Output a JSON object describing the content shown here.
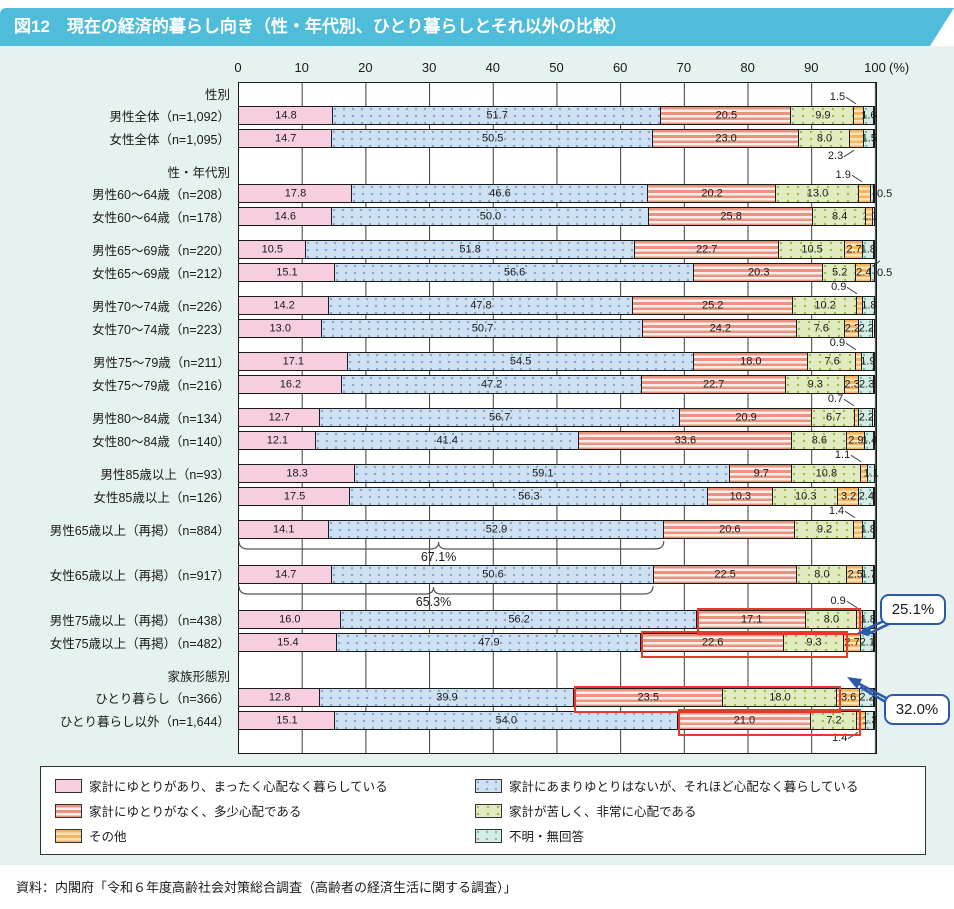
{
  "title": "図12　現在の経済的暮らし向き（性・年代別、ひとり暮らしとそれ以外の比較）",
  "source": "資料：内閣府「令和６年度高齢社会対策総合調査（高齢者の経済生活に関する調査）」",
  "axis": {
    "ticks": [
      "0",
      "10",
      "20",
      "30",
      "40",
      "50",
      "60",
      "70",
      "80",
      "90",
      "100"
    ],
    "unit": "(%)",
    "min": 0,
    "max": 100
  },
  "colors": {
    "title_bg": "#4FBCD9",
    "panel_bg": "#E6F2F0",
    "pink": "#F6CEDF",
    "blue_dotted": "#CEE0F2",
    "salmon_stripe": "#EA9480",
    "green_dotted": "#E2EBBF",
    "orange_stripe": "#F6B45F",
    "teal_dotted": "#D5ECE6",
    "highlight_box": "#E8382D",
    "bubble_border": "#2B5BA8"
  },
  "legend": {
    "columns": [
      [
        {
          "key": "yutori",
          "label": "家計にゆとりがあり、まったく心配なく暮らしている"
        },
        {
          "key": "naku",
          "label": "家計にゆとりがなく、多少心配である"
        },
        {
          "key": "sonota",
          "label": "その他"
        }
      ],
      [
        {
          "key": "amari",
          "label": "家計にあまりゆとりはないが、それほど心配なく暮らしている"
        },
        {
          "key": "kurushii",
          "label": "家計が苦しく、非常に心配である"
        },
        {
          "key": "fumei",
          "label": "不明・無回答"
        }
      ]
    ]
  },
  "chart_data": {
    "type": "bar",
    "stacked": true,
    "orientation": "horizontal",
    "unit": "%",
    "xlim": [
      0,
      100
    ],
    "grid": true,
    "series_names": [
      "家計にゆとりがあり、まったく心配なく暮らしている",
      "家計にあまりゆとりはないが、それほど心配なく暮らしている",
      "家計にゆとりがなく、多少心配である",
      "家計が苦しく、非常に心配である",
      "その他",
      "不明・無回答"
    ],
    "series_keys_css": [
      "yutori",
      "amari",
      "naku",
      "kurushii",
      "sonota",
      "fumei"
    ],
    "blocks": [
      {
        "header": "性別",
        "rows": [
          {
            "label": "男性全体（n=1,092）",
            "values": [
              14.8,
              51.7,
              20.5,
              9.9,
              1.5,
              1.6
            ],
            "labels": [
              "14.8",
              "51.7",
              "20.5",
              "9.9",
              null,
              "1.6"
            ],
            "callouts": [
              {
                "seg": 4,
                "dir": "up",
                "text": "1.5"
              }
            ]
          },
          {
            "label": "女性全体（n=1,095）",
            "values": [
              14.7,
              50.5,
              23.0,
              8.0,
              2.3,
              1.5
            ],
            "labels": [
              "14.7",
              "50.5",
              "23.0",
              "8.0",
              null,
              "1.5"
            ],
            "callouts": [
              {
                "seg": 4,
                "dir": "down",
                "text": "2.3"
              }
            ]
          }
        ]
      },
      {
        "header": "性・年代別",
        "rows": [
          {
            "label": "男性60～64歳（n=208）",
            "values": [
              17.8,
              46.6,
              20.2,
              13.0,
              1.9,
              0.5
            ],
            "labels": [
              "17.8",
              "46.6",
              "20.2",
              "13.0",
              null,
              null
            ],
            "callouts": [
              {
                "seg": 4,
                "dir": "up",
                "text": "1.9"
              },
              {
                "seg": 5,
                "dir": "right",
                "text": "0.5",
                "conn": false
              }
            ]
          },
          {
            "label": "女性60～64歳（n=178）",
            "values": [
              14.6,
              50.0,
              25.8,
              8.4,
              1.1,
              0
            ],
            "labels": [
              "14.6",
              "50.0",
              "25.8",
              "8.4",
              "1.1",
              null
            ],
            "callouts": []
          }
        ]
      },
      {
        "rows": [
          {
            "label": "男性65～69歳（n=220）",
            "values": [
              10.5,
              51.8,
              22.7,
              10.5,
              2.7,
              1.8
            ],
            "labels": [
              "10.5",
              "51.8",
              "22.7",
              "10.5",
              "2.7",
              "1.8"
            ],
            "callouts": []
          },
          {
            "label": "女性65～69歳（n=212）",
            "values": [
              15.1,
              56.6,
              20.3,
              5.2,
              2.4,
              0.5
            ],
            "labels": [
              "15.1",
              "56.6",
              "20.3",
              "5.2",
              "2.4",
              null
            ],
            "callouts": [
              {
                "seg": 5,
                "dir": "right",
                "text": "0.5",
                "conn": true
              }
            ]
          }
        ]
      },
      {
        "rows": [
          {
            "label": "男性70～74歳（n=226）",
            "values": [
              14.2,
              47.8,
              25.2,
              10.2,
              0.9,
              1.8
            ],
            "labels": [
              "14.2",
              "47.8",
              "25.2",
              "10.2",
              null,
              "1.8"
            ],
            "callouts": [
              {
                "seg": 4,
                "dir": "up",
                "text": "0.9"
              }
            ]
          },
          {
            "label": "女性70～74歳（n=223）",
            "values": [
              13.0,
              50.7,
              24.2,
              7.6,
              2.2,
              2.2
            ],
            "labels": [
              "13.0",
              "50.7",
              "24.2",
              "7.6",
              "2.2",
              "2.2"
            ],
            "callouts": []
          }
        ]
      },
      {
        "rows": [
          {
            "label": "男性75～79歳（n=211）",
            "values": [
              17.1,
              54.5,
              18.0,
              7.6,
              0.9,
              1.9
            ],
            "labels": [
              "17.1",
              "54.5",
              "18.0",
              "7.6",
              null,
              "1.9"
            ],
            "callouts": [
              {
                "seg": 4,
                "dir": "up",
                "text": "0.9"
              }
            ]
          },
          {
            "label": "女性75～79歳（n=216）",
            "values": [
              16.2,
              47.2,
              22.7,
              9.3,
              2.3,
              2.3
            ],
            "labels": [
              "16.2",
              "47.2",
              "22.7",
              "9.3",
              "2.3",
              "2.3"
            ],
            "callouts": []
          }
        ]
      },
      {
        "rows": [
          {
            "label": "男性80～84歳（n=134）",
            "values": [
              12.7,
              56.7,
              20.9,
              6.7,
              0.7,
              2.2
            ],
            "labels": [
              "12.7",
              "56.7",
              "20.9",
              "6.7",
              null,
              "2.2"
            ],
            "callouts": [
              {
                "seg": 4,
                "dir": "up",
                "text": "0.7"
              }
            ]
          },
          {
            "label": "女性80～84歳（n=140）",
            "values": [
              12.1,
              41.4,
              33.6,
              8.6,
              2.9,
              1.4
            ],
            "labels": [
              "12.1",
              "41.4",
              "33.6",
              "8.6",
              "2.9",
              "1.4"
            ],
            "callouts": []
          }
        ]
      },
      {
        "rows": [
          {
            "label": "男性85歳以上（n=93）",
            "values": [
              18.3,
              59.1,
              9.7,
              10.8,
              1.1,
              1.1
            ],
            "labels": [
              "18.3",
              "59.1",
              "9.7",
              "10.8",
              null,
              "1.1"
            ],
            "callouts": [
              {
                "seg": 4,
                "dir": "up",
                "text": "1.1"
              }
            ]
          },
          {
            "label": "女性85歳以上（n=126）",
            "values": [
              17.5,
              56.3,
              10.3,
              10.3,
              3.2,
              2.4
            ],
            "labels": [
              "17.5",
              "56.3",
              "10.3",
              "10.3",
              "3.2",
              "2.4"
            ],
            "callouts": []
          }
        ]
      },
      {
        "rows": [
          {
            "label": "男性65歳以上（再掲）（n=884）",
            "values": [
              14.1,
              52.9,
              20.6,
              9.2,
              1.4,
              1.8
            ],
            "labels": [
              "14.1",
              "52.9",
              "20.6",
              "9.2",
              null,
              "1.8"
            ],
            "callouts": [
              {
                "seg": 4,
                "dir": "up",
                "text": "1.4"
              }
            ],
            "brace": {
              "text": "67.1%",
              "span": 67.0
            }
          }
        ]
      },
      {
        "rows": [
          {
            "label": "女性65歳以上（再掲）（n=917）",
            "values": [
              14.7,
              50.6,
              22.5,
              8.0,
              2.5,
              1.7
            ],
            "labels": [
              "14.7",
              "50.6",
              "22.5",
              "8.0",
              "2.5",
              "1.7"
            ],
            "callouts": [],
            "brace": {
              "text": "65.3%",
              "span": 65.3
            }
          }
        ]
      },
      {
        "rows": [
          {
            "label": "男性75歳以上（再掲）（n=438）",
            "values": [
              16.0,
              56.2,
              17.1,
              8.0,
              0.9,
              1.8
            ],
            "labels": [
              "16.0",
              "56.2",
              "17.1",
              "8.0",
              null,
              "1.8"
            ],
            "callouts": [
              {
                "seg": 4,
                "dir": "up",
                "text": "0.9"
              }
            ],
            "redbox": [
              2,
              3
            ]
          },
          {
            "label": "女性75歳以上（再掲）（n=482）",
            "values": [
              15.4,
              47.9,
              22.6,
              9.3,
              2.7,
              2.1
            ],
            "labels": [
              "15.4",
              "47.9",
              "22.6",
              "9.3",
              "2.7",
              "2.1"
            ],
            "callouts": [],
            "redbox": [
              2,
              3
            ]
          }
        ]
      },
      {
        "header": "家族形態別",
        "rows": [
          {
            "label": "ひとり暮らし（n=366）",
            "values": [
              12.8,
              39.9,
              23.5,
              18.0,
              3.6,
              2.2
            ],
            "labels": [
              "12.8",
              "39.9",
              "23.5",
              "18.0",
              "3.6",
              "2.2"
            ],
            "callouts": [],
            "redbox": [
              2,
              3
            ]
          },
          {
            "label": "ひとり暮らし以外（n=1,644）",
            "values": [
              15.1,
              54.0,
              21.0,
              7.2,
              1.4,
              1.3
            ],
            "labels": [
              "15.1",
              "54.0",
              "21.0",
              "7.2",
              null,
              "1.3"
            ],
            "callouts": [
              {
                "seg": 4,
                "dir": "down",
                "text": "1.4"
              }
            ],
            "redbox": [
              2,
              3
            ]
          }
        ]
      }
    ],
    "bubbles": [
      {
        "text": "25.1%",
        "points_to": "男性75歳以上（再掲）の苦しい計（17.1+8.0）"
      },
      {
        "text": "32.0%",
        "points_to": "女性75歳以上（再掲）の苦しい計（22.6+9.3）"
      }
    ]
  }
}
